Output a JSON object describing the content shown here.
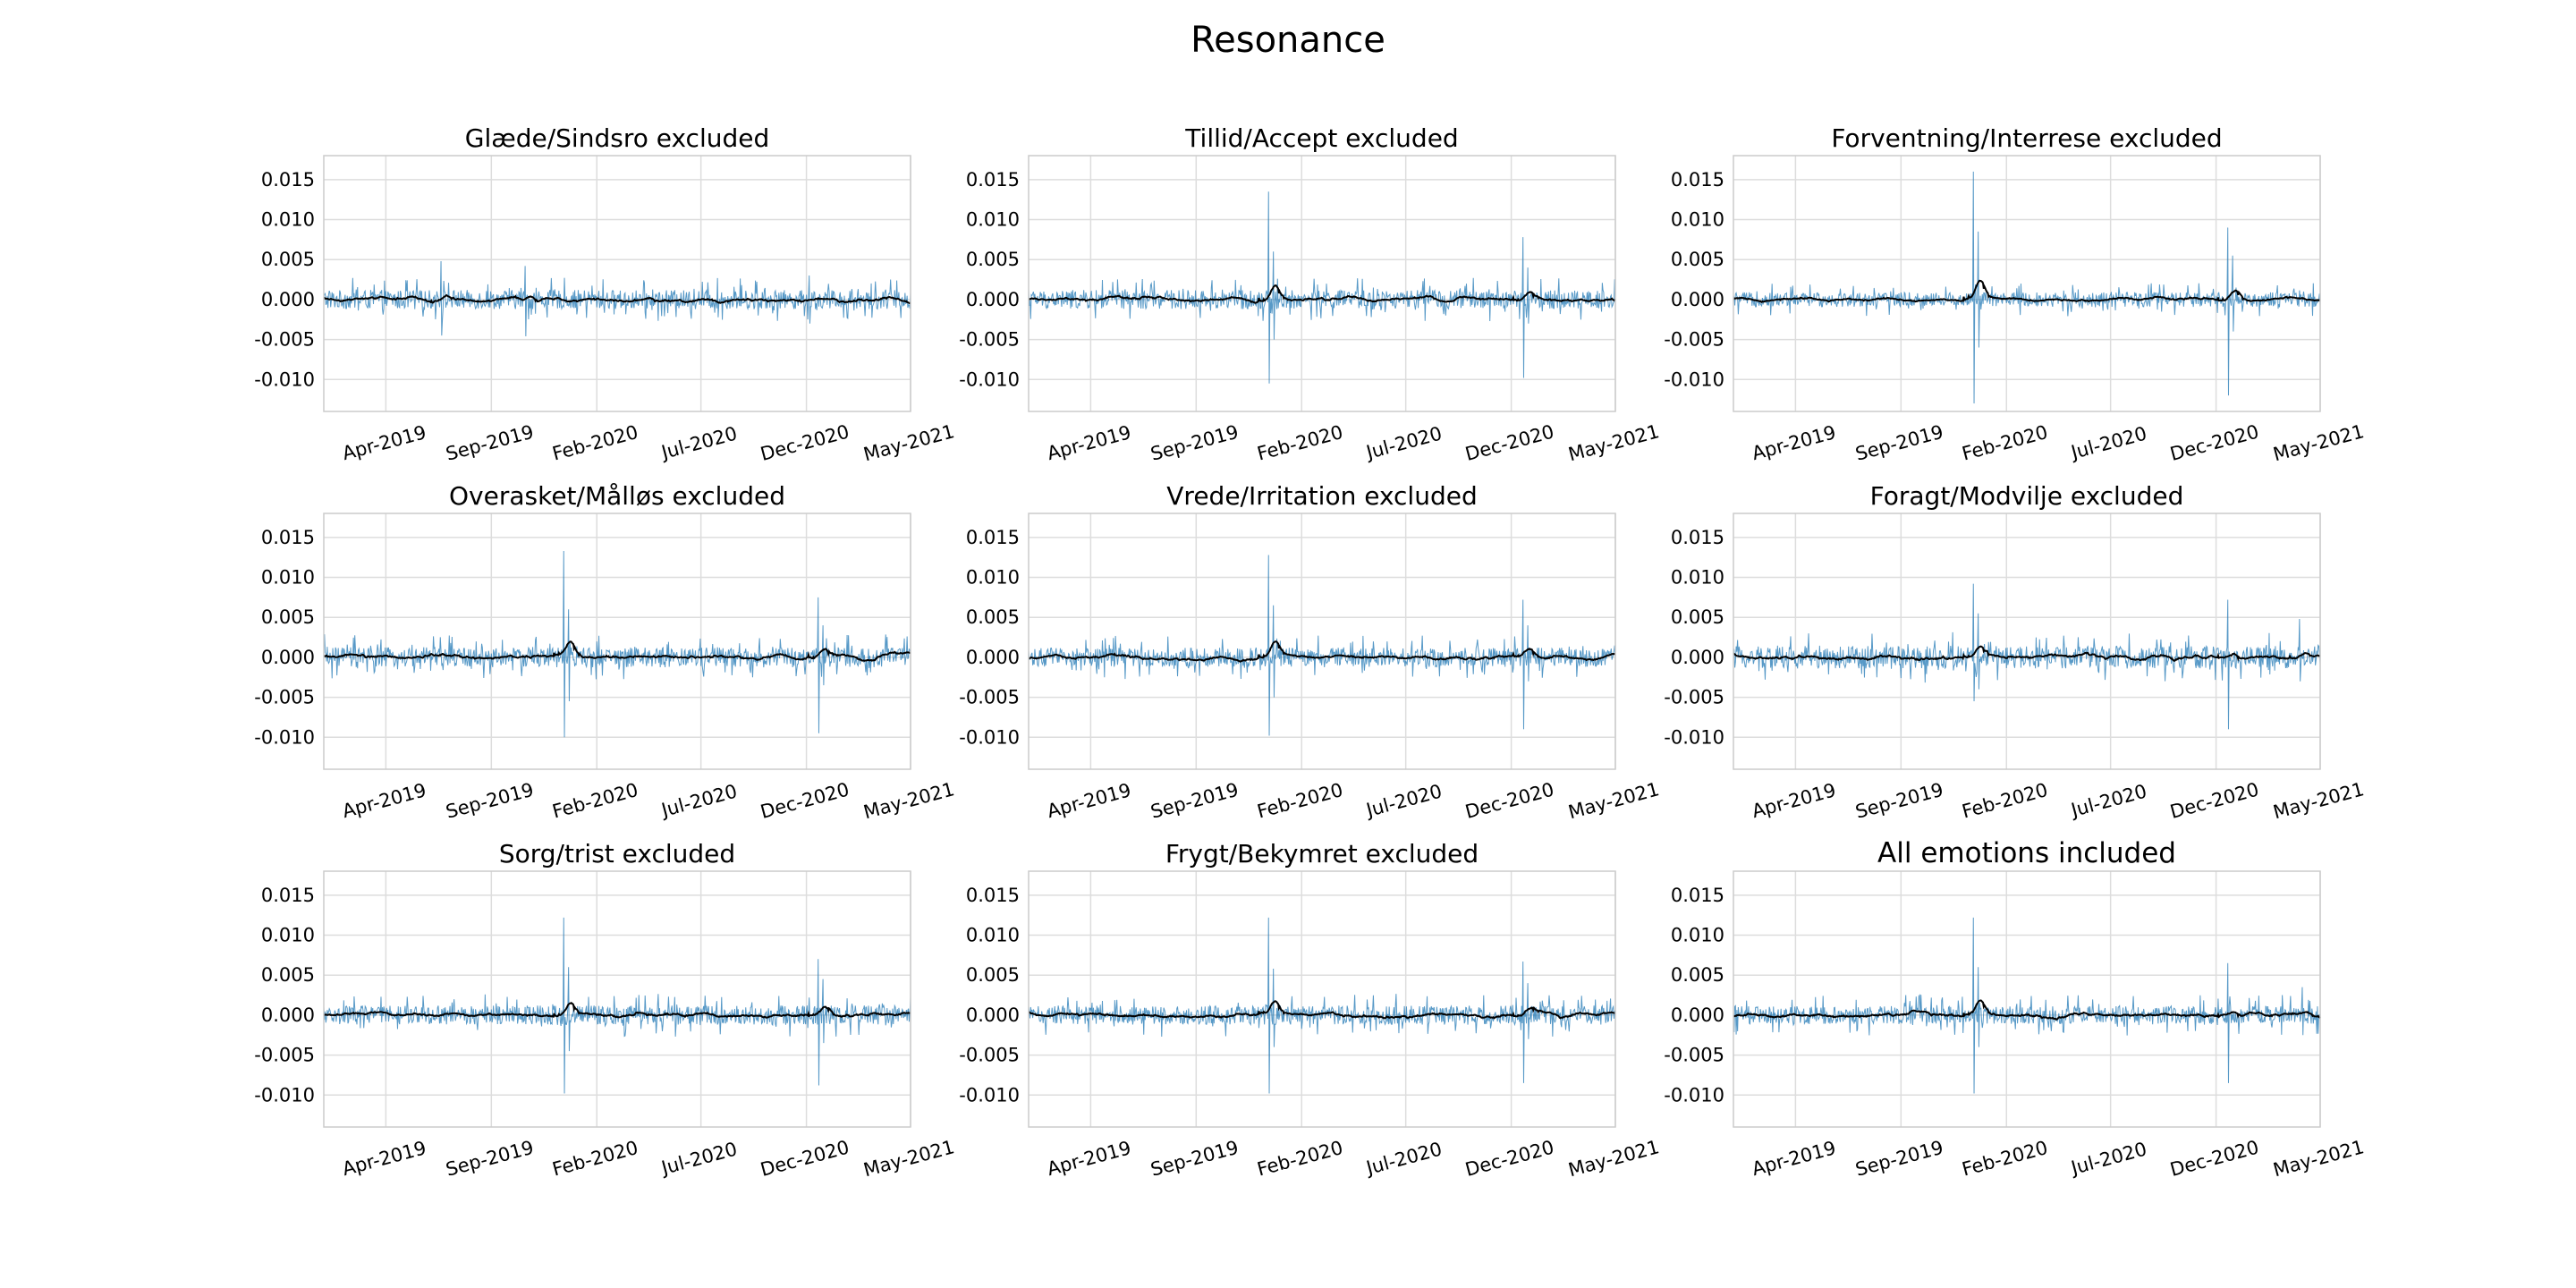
{
  "figure": {
    "suptitle": "Resonance",
    "colors": {
      "raw": "#1f77b4",
      "smooth": "#000000",
      "grid": "#dddddd",
      "spine": "#cccccc"
    }
  },
  "chart_data": [
    {
      "type": "line",
      "title": "Glæde/Sindsro excluded",
      "xlabel": "",
      "ylabel": "",
      "xlim": [
        "2019-01-01",
        "2021-05-01"
      ],
      "ylim": [
        -0.014,
        0.018
      ],
      "x_ticks": [
        "Apr-2019",
        "Sep-2019",
        "Feb-2020",
        "Jul-2020",
        "Dec-2020",
        "May-2021"
      ],
      "y_ticks": [
        "0.015",
        "0.010",
        "0.005",
        "0.000",
        "-0.005",
        "-0.010"
      ],
      "grid": true,
      "series": [
        {
          "values_desc": "daily resonance",
          "spikes": [
            [
              "2019-06-20",
              0.0048,
              -0.0045
            ],
            [
              "2019-10-20",
              0.0042,
              -0.0046
            ],
            [
              "2020-04-10",
              0.0021,
              -0.0016
            ],
            [
              "2020-12-05",
              0.003,
              -0.003
            ]
          ],
          "noise_amp": 0.0017
        }
      ]
    },
    {
      "type": "line",
      "title": "Tillid/Accept excluded",
      "xlabel": "",
      "ylabel": "",
      "xlim": [
        "2019-01-01",
        "2021-05-01"
      ],
      "ylim": [
        -0.014,
        0.018
      ],
      "x_ticks": [
        "Apr-2019",
        "Sep-2019",
        "Feb-2020",
        "Jul-2020",
        "Dec-2020",
        "May-2021"
      ],
      "y_ticks": [
        "0.015",
        "0.010",
        "0.005",
        "0.000",
        "-0.005",
        "-0.010"
      ],
      "grid": true,
      "series": [
        {
          "spikes": [
            [
              "2019-12-15",
              0.0135,
              -0.0105
            ],
            [
              "2019-12-22",
              0.006,
              -0.005
            ],
            [
              "2020-12-18",
              0.0078,
              -0.0098
            ],
            [
              "2020-12-25",
              0.004,
              -0.003
            ]
          ],
          "noise_amp": 0.0017
        }
      ]
    },
    {
      "type": "line",
      "title": "Forventning/Interrese excluded",
      "xlabel": "",
      "ylabel": "",
      "xlim": [
        "2019-01-01",
        "2021-05-01"
      ],
      "ylim": [
        -0.014,
        0.018
      ],
      "x_ticks": [
        "Apr-2019",
        "Sep-2019",
        "Feb-2020",
        "Jul-2020",
        "Dec-2020",
        "May-2021"
      ],
      "y_ticks": [
        "0.015",
        "0.010",
        "0.005",
        "0.000",
        "-0.005",
        "-0.010"
      ],
      "grid": true,
      "series": [
        {
          "spikes": [
            [
              "2019-12-15",
              0.016,
              -0.013
            ],
            [
              "2019-12-22",
              0.0085,
              -0.006
            ],
            [
              "2020-12-18",
              0.009,
              -0.012
            ],
            [
              "2020-12-25",
              0.0055,
              -0.004
            ]
          ],
          "noise_amp": 0.0013
        }
      ]
    },
    {
      "type": "line",
      "title": "Overasket/Målløs excluded",
      "xlabel": "",
      "ylabel": "",
      "xlim": [
        "2019-01-01",
        "2021-05-01"
      ],
      "ylim": [
        -0.014,
        0.018
      ],
      "x_ticks": [
        "Apr-2019",
        "Sep-2019",
        "Feb-2020",
        "Jul-2020",
        "Dec-2020",
        "May-2021"
      ],
      "y_ticks": [
        "0.015",
        "0.010",
        "0.005",
        "0.000",
        "-0.005",
        "-0.010"
      ],
      "grid": true,
      "series": [
        {
          "spikes": [
            [
              "2019-12-15",
              0.0133,
              -0.01
            ],
            [
              "2019-12-22",
              0.006,
              -0.0055
            ],
            [
              "2020-12-18",
              0.0075,
              -0.0095
            ],
            [
              "2020-12-25",
              0.004,
              -0.0035
            ]
          ],
          "noise_amp": 0.0018
        }
      ]
    },
    {
      "type": "line",
      "title": "Vrede/Irritation excluded",
      "xlabel": "",
      "ylabel": "",
      "xlim": [
        "2019-01-01",
        "2021-05-01"
      ],
      "ylim": [
        -0.014,
        0.018
      ],
      "x_ticks": [
        "Apr-2019",
        "Sep-2019",
        "Feb-2020",
        "Jul-2020",
        "Dec-2020",
        "May-2021"
      ],
      "y_ticks": [
        "0.015",
        "0.010",
        "0.005",
        "0.000",
        "-0.005",
        "-0.010"
      ],
      "grid": true,
      "series": [
        {
          "spikes": [
            [
              "2019-12-15",
              0.0128,
              -0.0098
            ],
            [
              "2019-12-22",
              0.0065,
              -0.005
            ],
            [
              "2020-12-18",
              0.0072,
              -0.009
            ],
            [
              "2020-12-25",
              0.004,
              -0.003
            ]
          ],
          "noise_amp": 0.0017
        }
      ]
    },
    {
      "type": "line",
      "title": "Foragt/Modvilje excluded",
      "xlabel": "",
      "ylabel": "",
      "xlim": [
        "2019-01-01",
        "2021-05-01"
      ],
      "ylim": [
        -0.014,
        0.018
      ],
      "x_ticks": [
        "Apr-2019",
        "Sep-2019",
        "Feb-2020",
        "Jul-2020",
        "Dec-2020",
        "May-2021"
      ],
      "y_ticks": [
        "0.015",
        "0.010",
        "0.005",
        "0.000",
        "-0.005",
        "-0.010"
      ],
      "grid": true,
      "series": [
        {
          "spikes": [
            [
              "2019-12-15",
              0.0092,
              -0.0055
            ],
            [
              "2019-12-22",
              0.0055,
              -0.004
            ],
            [
              "2020-12-18",
              0.0072,
              -0.009
            ],
            [
              "2021-04-01",
              0.0048,
              -0.003
            ]
          ],
          "noise_amp": 0.002
        }
      ]
    },
    {
      "type": "line",
      "title": "Sorg/trist excluded",
      "xlabel": "",
      "ylabel": "",
      "xlim": [
        "2019-01-01",
        "2021-05-01"
      ],
      "ylim": [
        -0.014,
        0.018
      ],
      "x_ticks": [
        "Apr-2019",
        "Sep-2019",
        "Feb-2020",
        "Jul-2020",
        "Dec-2020",
        "May-2021"
      ],
      "y_ticks": [
        "0.015",
        "0.010",
        "0.005",
        "0.000",
        "-0.005",
        "-0.010"
      ],
      "grid": true,
      "series": [
        {
          "spikes": [
            [
              "2019-12-15",
              0.0122,
              -0.0098
            ],
            [
              "2019-12-22",
              0.006,
              -0.0045
            ],
            [
              "2020-12-18",
              0.007,
              -0.0088
            ],
            [
              "2020-12-25",
              0.0045,
              -0.0035
            ]
          ],
          "noise_amp": 0.0017
        }
      ]
    },
    {
      "type": "line",
      "title": "Frygt/Bekymret excluded",
      "xlabel": "",
      "ylabel": "",
      "xlim": [
        "2019-01-01",
        "2021-05-01"
      ],
      "ylim": [
        -0.014,
        0.018
      ],
      "x_ticks": [
        "Apr-2019",
        "Sep-2019",
        "Feb-2020",
        "Jul-2020",
        "Dec-2020",
        "May-2021"
      ],
      "y_ticks": [
        "0.015",
        "0.010",
        "0.005",
        "0.000",
        "-0.005",
        "-0.010"
      ],
      "grid": true,
      "series": [
        {
          "spikes": [
            [
              "2019-12-15",
              0.0122,
              -0.0098
            ],
            [
              "2019-12-22",
              0.0058,
              -0.004
            ],
            [
              "2020-12-18",
              0.0067,
              -0.0085
            ],
            [
              "2020-12-25",
              0.004,
              -0.003
            ]
          ],
          "noise_amp": 0.0017
        }
      ]
    },
    {
      "type": "line",
      "title": "All emotions included",
      "xlabel": "",
      "ylabel": "",
      "xlim": [
        "2019-01-01",
        "2021-05-01"
      ],
      "ylim": [
        -0.014,
        0.018
      ],
      "x_ticks": [
        "Apr-2019",
        "Sep-2019",
        "Feb-2020",
        "Jul-2020",
        "Dec-2020",
        "May-2021"
      ],
      "y_ticks": [
        "0.015",
        "0.010",
        "0.005",
        "0.000",
        "-0.005",
        "-0.010"
      ],
      "grid": true,
      "series": [
        {
          "spikes": [
            [
              "2019-12-15",
              0.0122,
              -0.0098
            ],
            [
              "2019-12-22",
              0.006,
              -0.004
            ],
            [
              "2020-12-18",
              0.0065,
              -0.0085
            ],
            [
              "2021-04-05",
              0.0035,
              -0.0025
            ]
          ],
          "noise_amp": 0.0016
        }
      ]
    }
  ]
}
